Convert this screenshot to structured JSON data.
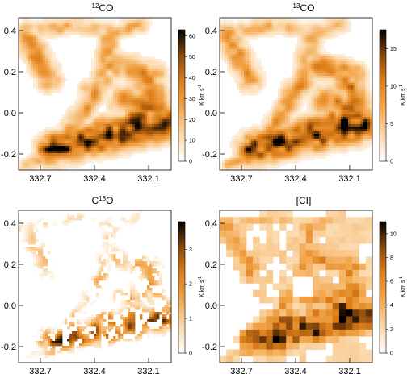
{
  "chart_data": [
    {
      "type": "heatmap",
      "title": "¹²CO",
      "title_parts": {
        "iso": "12",
        "mol": "CO"
      },
      "x_ticks": [
        "332.7",
        "332.4",
        "332.1"
      ],
      "y_ticks": [
        "0.4",
        "0.2",
        "0.0",
        "-0.2"
      ],
      "xlim": [
        332.85,
        332.0
      ],
      "ylim": [
        -0.28,
        0.46
      ],
      "colorbar": {
        "label": "K km s⁻¹",
        "label_main": "K km s",
        "label_exp": "-1",
        "ticks": [
          "0",
          "10",
          "20",
          "30",
          "40",
          "50",
          "60"
        ],
        "range": [
          0,
          63
        ]
      },
      "colormap": "white-orange-black",
      "resolution": "fine",
      "coverage": "full"
    },
    {
      "type": "heatmap",
      "title": "¹³CO",
      "title_parts": {
        "iso": "13",
        "mol": "CO"
      },
      "x_ticks": [
        "332.7",
        "332.4",
        "332.1"
      ],
      "y_ticks": [
        "0.4",
        "0.2",
        "0.0",
        "-0.2"
      ],
      "xlim": [
        332.85,
        332.0
      ],
      "ylim": [
        -0.28,
        0.46
      ],
      "colorbar": {
        "label": "K km s⁻¹",
        "label_main": "K km s",
        "label_exp": "-1",
        "ticks": [
          "0",
          "5",
          "10",
          "15"
        ],
        "range": [
          0,
          17.5
        ]
      },
      "colormap": "white-orange-black",
      "resolution": "fine",
      "coverage": "full"
    },
    {
      "type": "heatmap",
      "title": "C¹⁸O",
      "title_parts": {
        "mol_a": "C",
        "iso": "18",
        "mol_b": "O"
      },
      "x_ticks": [
        "332.7",
        "332.4",
        "332.1"
      ],
      "y_ticks": [
        "0.4",
        "0.2",
        "0.0",
        "-0.2"
      ],
      "xlim": [
        332.85,
        332.0
      ],
      "ylim": [
        -0.28,
        0.46
      ],
      "colorbar": {
        "label": "K km s⁻¹",
        "label_main": "K km s",
        "label_exp": "-1",
        "ticks": [
          "0",
          "1",
          "2",
          "3"
        ],
        "range": [
          0,
          3.8
        ]
      },
      "colormap": "white-orange-black",
      "resolution": "fine",
      "coverage": "sparse"
    },
    {
      "type": "heatmap",
      "title": "[CI]",
      "x_ticks": [
        "332.7",
        "332.4",
        "332.1"
      ],
      "y_ticks": [
        "0.4",
        "0.2",
        "0.0",
        "-0.2"
      ],
      "xlim": [
        332.85,
        332.0
      ],
      "ylim": [
        -0.28,
        0.46
      ],
      "colorbar": {
        "label": "K km s⁻¹",
        "label_main": "K km s",
        "label_exp": "-1",
        "ticks": [
          "0",
          "2",
          "4",
          "6",
          "8",
          "10"
        ],
        "range": [
          0,
          11
        ]
      },
      "colormap": "white-orange-black",
      "resolution": "coarse",
      "coverage": "full"
    }
  ]
}
